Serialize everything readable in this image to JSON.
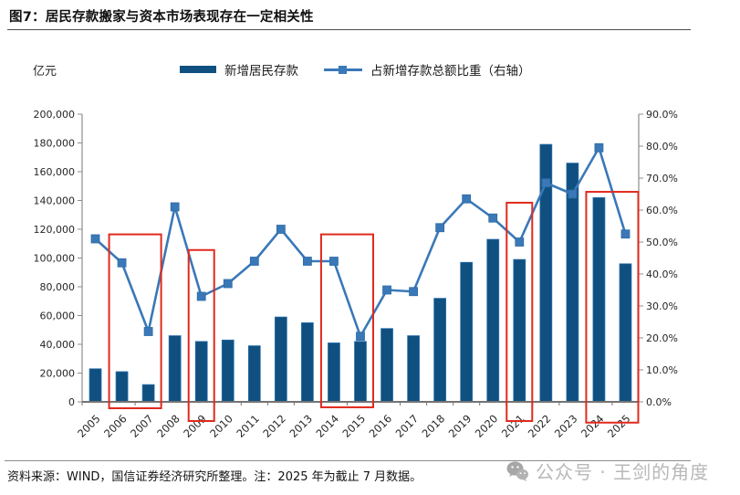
{
  "header": {
    "title": "图7：居民存款搬家与资本市场表现存在一定相关性"
  },
  "legend": {
    "bar_label": "新增居民存款",
    "line_label": "占新增存款总额比重（右轴）"
  },
  "chart_data": {
    "type": "bar",
    "title": "居民存款搬家与资本市场表现存在一定相关性",
    "unit_label": "亿元",
    "categories": [
      "2005",
      "2006",
      "2007",
      "2008",
      "2009",
      "2010",
      "2011",
      "2012",
      "2013",
      "2014",
      "2015",
      "2016",
      "2017",
      "2018",
      "2019",
      "2020",
      "2021",
      "2022",
      "2023",
      "2024",
      "2025"
    ],
    "series": [
      {
        "name": "新增居民存款",
        "type": "bar",
        "axis": "left",
        "color": "#0f5080",
        "edge_color": "#2f73ae",
        "values": [
          23000,
          21000,
          12000,
          46000,
          42000,
          43000,
          39000,
          59000,
          55000,
          41000,
          42000,
          51000,
          46000,
          72000,
          97000,
          113000,
          99000,
          179000,
          166000,
          142000,
          96000
        ]
      },
      {
        "name": "占新增存款总额比重（右轴）",
        "type": "line",
        "axis": "right",
        "color": "#3a78b8",
        "values": [
          51,
          43.5,
          22,
          61,
          33,
          37,
          44,
          54,
          44,
          44,
          20.5,
          35,
          34.5,
          54.5,
          63.5,
          57.5,
          50,
          68.5,
          65,
          79.5,
          52.5
        ]
      }
    ],
    "left_axis": {
      "min": 0,
      "max": 200000,
      "step": 20000,
      "tick_labels": [
        "0",
        "20,000",
        "40,000",
        "60,000",
        "80,000",
        "100,000",
        "120,000",
        "140,000",
        "160,000",
        "180,000",
        "200,000"
      ]
    },
    "right_axis": {
      "min": 0,
      "max": 90,
      "step": 10,
      "tick_labels": [
        "0.0%",
        "10.0%",
        "20.0%",
        "30.0%",
        "40.0%",
        "50.0%",
        "60.0%",
        "70.0%",
        "80.0%",
        "90.0%"
      ]
    },
    "grid": false,
    "legend_position": "top",
    "highlights": [
      {
        "from": "2006",
        "to": "2007",
        "top_pct": 52.4,
        "bottom_pct": -2.0
      },
      {
        "from": "2009",
        "to": "2009",
        "top_pct": 47.5,
        "bottom_pct": -6.0
      },
      {
        "from": "2014",
        "to": "2015",
        "top_pct": 52.4,
        "bottom_pct": -1.7
      },
      {
        "from": "2021",
        "to": "2021",
        "top_pct": 62.3,
        "bottom_pct": -6.0
      },
      {
        "from": "2024",
        "to": "2025",
        "top_pct": 65.7,
        "bottom_pct": -6.5
      }
    ],
    "highlight_color": "#e02a1e"
  },
  "footer": {
    "source_note": "资料来源：WIND，国信证券经济研究所整理。注：2025 年为截止 7 月数据。",
    "watermark": "公众号 · 王剑的角度"
  }
}
